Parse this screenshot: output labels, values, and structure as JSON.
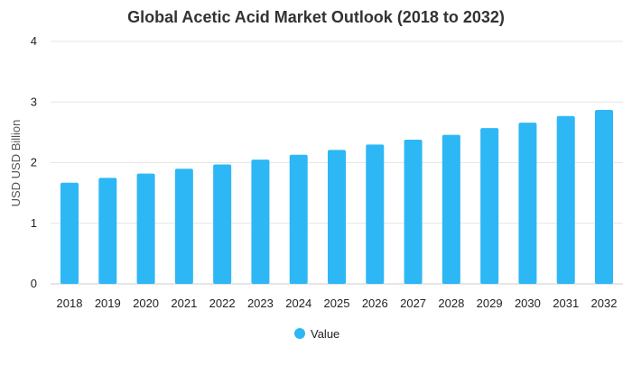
{
  "chart_data": {
    "type": "bar",
    "title": "Global Acetic Acid Market Outlook (2018 to 2032)",
    "xlabel": "",
    "ylabel": "USD USD Billion",
    "categories": [
      "2018",
      "2019",
      "2020",
      "2021",
      "2022",
      "2023",
      "2024",
      "2025",
      "2026",
      "2027",
      "2028",
      "2029",
      "2030",
      "2031",
      "2032"
    ],
    "series": [
      {
        "name": "Value",
        "color": "#2db7f5",
        "values": [
          1.67,
          1.75,
          1.82,
          1.9,
          1.97,
          2.05,
          2.13,
          2.21,
          2.3,
          2.38,
          2.46,
          2.57,
          2.66,
          2.77,
          2.87
        ]
      }
    ],
    "ylim": [
      0,
      4
    ],
    "yticks": [
      "0",
      "1",
      "2",
      "3",
      "4"
    ],
    "grid": true,
    "legend_position": "bottom-center"
  }
}
